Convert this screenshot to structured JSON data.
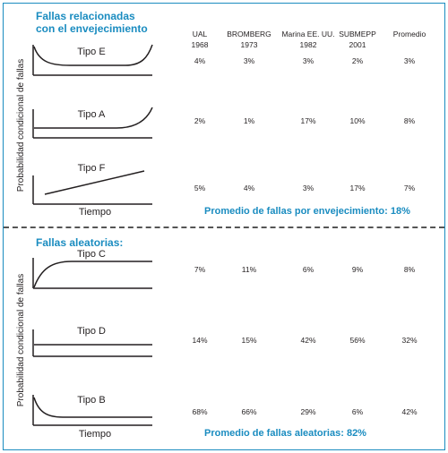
{
  "colors": {
    "accent": "#1a8cc0",
    "text": "#231f20",
    "divider": "#555555"
  },
  "top_section": {
    "title_line1": "Fallas relacionadas",
    "title_line2": "con el envejecimiento",
    "y_axis_label": "Probabilidad condicional de fallas",
    "x_axis_label": "Tiempo",
    "summary": "Promedio de fallas por envejecimiento: 18%"
  },
  "bottom_section": {
    "title": "Fallas aleatorias:",
    "y_axis_label": "Probabilidad condicional de fallas",
    "x_axis_label": "Tiempo",
    "summary": "Promedio de fallas aleatorias: 82%"
  },
  "columns": [
    {
      "line1": "UAL",
      "line2": "1968"
    },
    {
      "line1": "BROMBERG",
      "line2": "1973"
    },
    {
      "line1": "Marina EE. UU.",
      "line2": "1982"
    },
    {
      "line1": "SUBMEPP",
      "line2": "2001"
    },
    {
      "line1": "Promedio",
      "line2": ""
    }
  ],
  "rows": [
    {
      "name": "Tipo E",
      "shape": "bathtub",
      "values": [
        "4%",
        "3%",
        "3%",
        "2%",
        "3%"
      ]
    },
    {
      "name": "Tipo A",
      "shape": "wearout",
      "values": [
        "2%",
        "1%",
        "17%",
        "10%",
        "8%"
      ]
    },
    {
      "name": "Tipo F",
      "shape": "increasing",
      "values": [
        "5%",
        "4%",
        "3%",
        "17%",
        "7%"
      ]
    },
    {
      "name": "Tipo C",
      "shape": "rising-then-flat",
      "values": [
        "7%",
        "11%",
        "6%",
        "9%",
        "8%"
      ]
    },
    {
      "name": "Tipo D",
      "shape": "constant",
      "values": [
        "14%",
        "15%",
        "42%",
        "56%",
        "32%"
      ]
    },
    {
      "name": "Tipo B",
      "shape": "infant-mortality",
      "values": [
        "68%",
        "66%",
        "29%",
        "6%",
        "42%"
      ]
    }
  ]
}
